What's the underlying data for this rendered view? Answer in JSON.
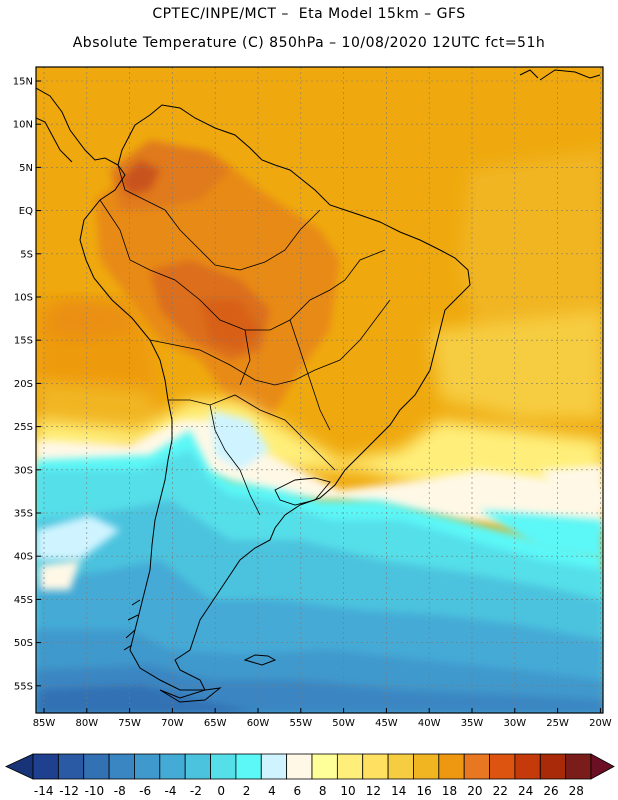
{
  "title": {
    "line1": "CPTEC/INPE/MCT –  Eta Model 15km – GFS",
    "line2": "Absolute Temperature (C) 850hPa – 10/08/2020 12UTC fct=51h"
  },
  "axes": {
    "lat_labels": [
      "15N",
      "10N",
      "5N",
      "EQ",
      "5S",
      "10S",
      "15S",
      "20S",
      "25S",
      "30S",
      "35S",
      "40S",
      "45S",
      "50S",
      "55S"
    ],
    "lon_labels": [
      "85W",
      "80W",
      "75W",
      "70W",
      "65W",
      "60W",
      "55W",
      "50W",
      "45W",
      "40W",
      "35W",
      "30W",
      "25W",
      "20W"
    ]
  },
  "colorbar": {
    "labels": [
      "-14",
      "-12",
      "-10",
      "-8",
      "-6",
      "-4",
      "-2",
      "0",
      "2",
      "4",
      "6",
      "8",
      "10",
      "12",
      "14",
      "16",
      "18",
      "20",
      "22",
      "24",
      "26",
      "28"
    ],
    "colors": [
      "#1f3f8f",
      "#2a5aa4",
      "#3271b4",
      "#3a86c2",
      "#3f99cc",
      "#44aad6",
      "#4bc3de",
      "#55dfe9",
      "#5cf7f7",
      "#cff4ff",
      "#fff8e6",
      "#ffff9a",
      "#ffef7a",
      "#ffe060",
      "#f6cc40",
      "#f1b521",
      "#ee9710",
      "#e87722",
      "#dc5410",
      "#c53a0a",
      "#a82a08",
      "#7a1d1a"
    ],
    "low_end_color": "#183377",
    "high_end_color": "#6b0f24"
  }
}
